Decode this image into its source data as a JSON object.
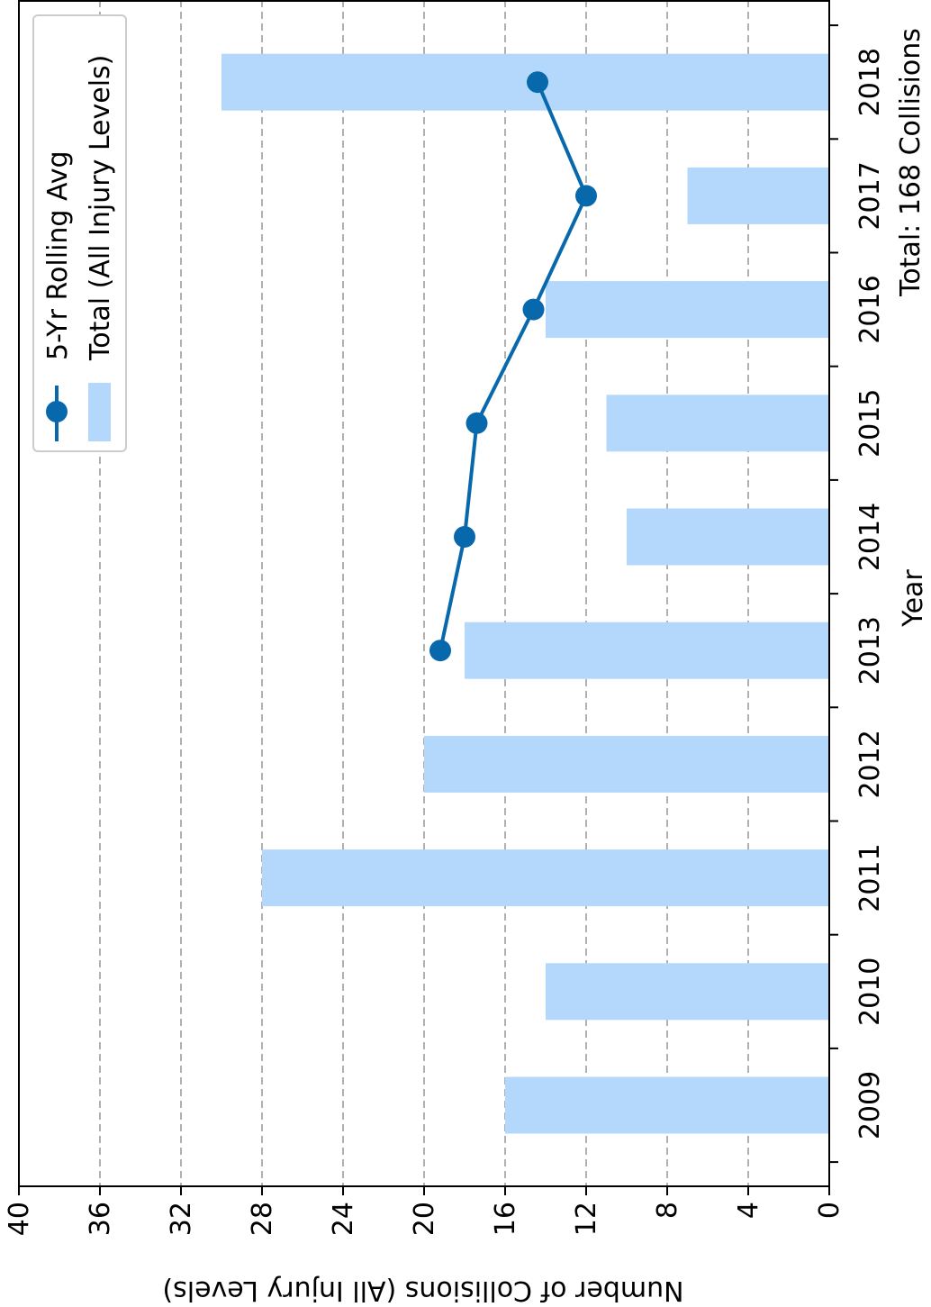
{
  "chart_data": {
    "type": "bar",
    "orientation": "rotated",
    "title": "",
    "xlabel": "Year",
    "ylabel": "Number of Collisions (All Injury Levels)",
    "annotation": "Total: 168 Collisions",
    "categories": [
      "2009",
      "2010",
      "2011",
      "2012",
      "2013",
      "2014",
      "2015",
      "2016",
      "2017",
      "2018"
    ],
    "ylim": [
      0,
      40
    ],
    "yticks": [
      0,
      4,
      8,
      12,
      16,
      20,
      24,
      28,
      32,
      36,
      40
    ],
    "grid": true,
    "legend_position": "top-left",
    "series": [
      {
        "name": "Total (All Injury Levels)",
        "type": "bar",
        "color": "#b3d8fc",
        "values": [
          16,
          14,
          28,
          20,
          18,
          10,
          11,
          14,
          7,
          30
        ]
      },
      {
        "name": "5-Yr Rolling Avg",
        "type": "line",
        "color": "#0868ac",
        "values": [
          null,
          null,
          null,
          null,
          19.2,
          18.0,
          17.4,
          14.6,
          12.0,
          14.4
        ]
      }
    ]
  }
}
